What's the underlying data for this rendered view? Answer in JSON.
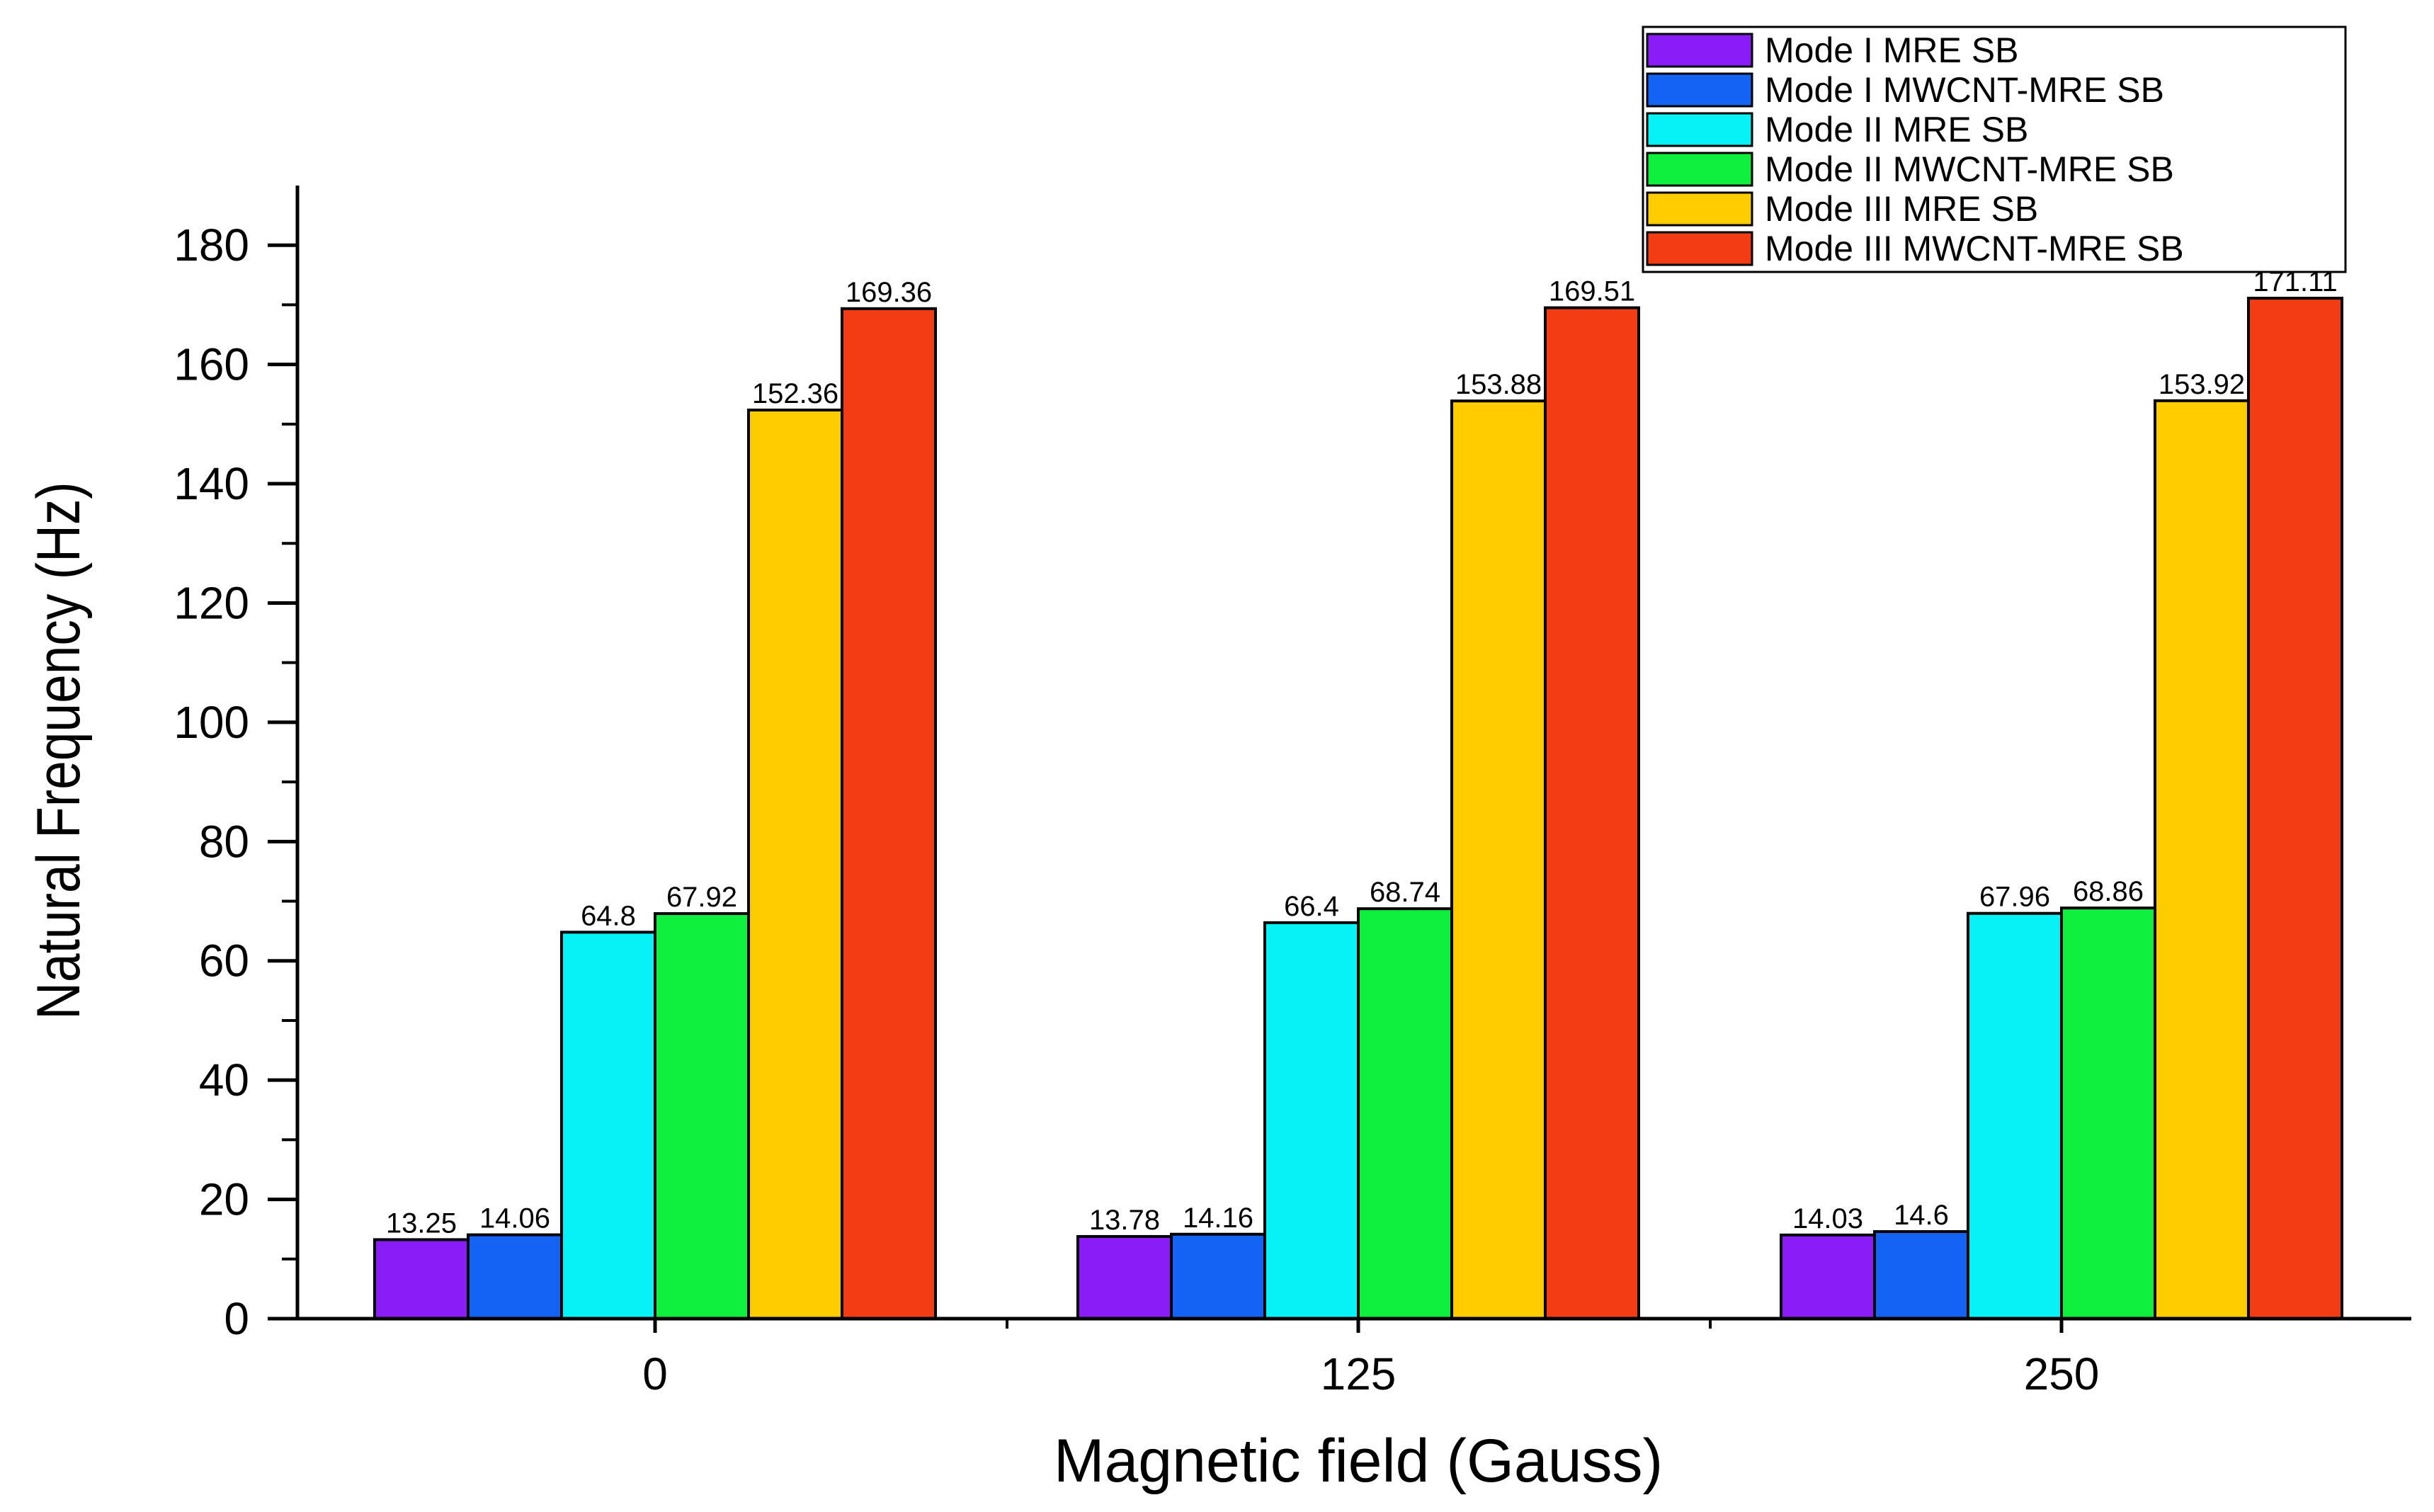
{
  "chart_data": {
    "type": "bar",
    "title": "",
    "xlabel": "Magnetic field (Gauss)",
    "ylabel": "Natural Frequency (Hz)",
    "categories": [
      "0",
      "125",
      "250"
    ],
    "ylim": [
      0,
      190
    ],
    "yticks": [
      0,
      20,
      40,
      60,
      80,
      100,
      120,
      140,
      160,
      180
    ],
    "ytick_labels": [
      "0",
      "20",
      "40",
      "60",
      "80",
      "100",
      "120",
      "140",
      "160",
      "180"
    ],
    "legend_position": "top-right",
    "grid": false,
    "series": [
      {
        "name": "Mode I MRE SB",
        "color": "#8a1cf8",
        "values": [
          13.25,
          13.78,
          14.03
        ],
        "labels": [
          "13.25",
          "13.78",
          "14.03"
        ]
      },
      {
        "name": "Mode I MWCNT-MRE SB",
        "color": "#1463f2",
        "values": [
          14.06,
          14.16,
          14.6
        ],
        "labels": [
          "14.06",
          "14.16",
          "14.6"
        ]
      },
      {
        "name": "Mode II MRE SB",
        "color": "#06f2f7",
        "values": [
          64.8,
          66.4,
          67.96
        ],
        "labels": [
          "64.8",
          "66.4",
          "67.96"
        ]
      },
      {
        "name": "Mode II MWCNT-MRE SB",
        "color": "#0ff03e",
        "values": [
          67.92,
          68.74,
          68.86
        ],
        "labels": [
          "67.92",
          "68.74",
          "68.86"
        ]
      },
      {
        "name": "Mode III MRE SB",
        "color": "#ffcc00",
        "values": [
          152.36,
          153.88,
          153.92
        ],
        "labels": [
          "152.36",
          "153.88",
          "153.92"
        ]
      },
      {
        "name": "Mode III MWCNT-MRE SB",
        "color": "#f23c14",
        "values": [
          169.36,
          169.51,
          171.11
        ],
        "labels": [
          "169.36",
          "169.51",
          "171.11"
        ]
      }
    ]
  }
}
